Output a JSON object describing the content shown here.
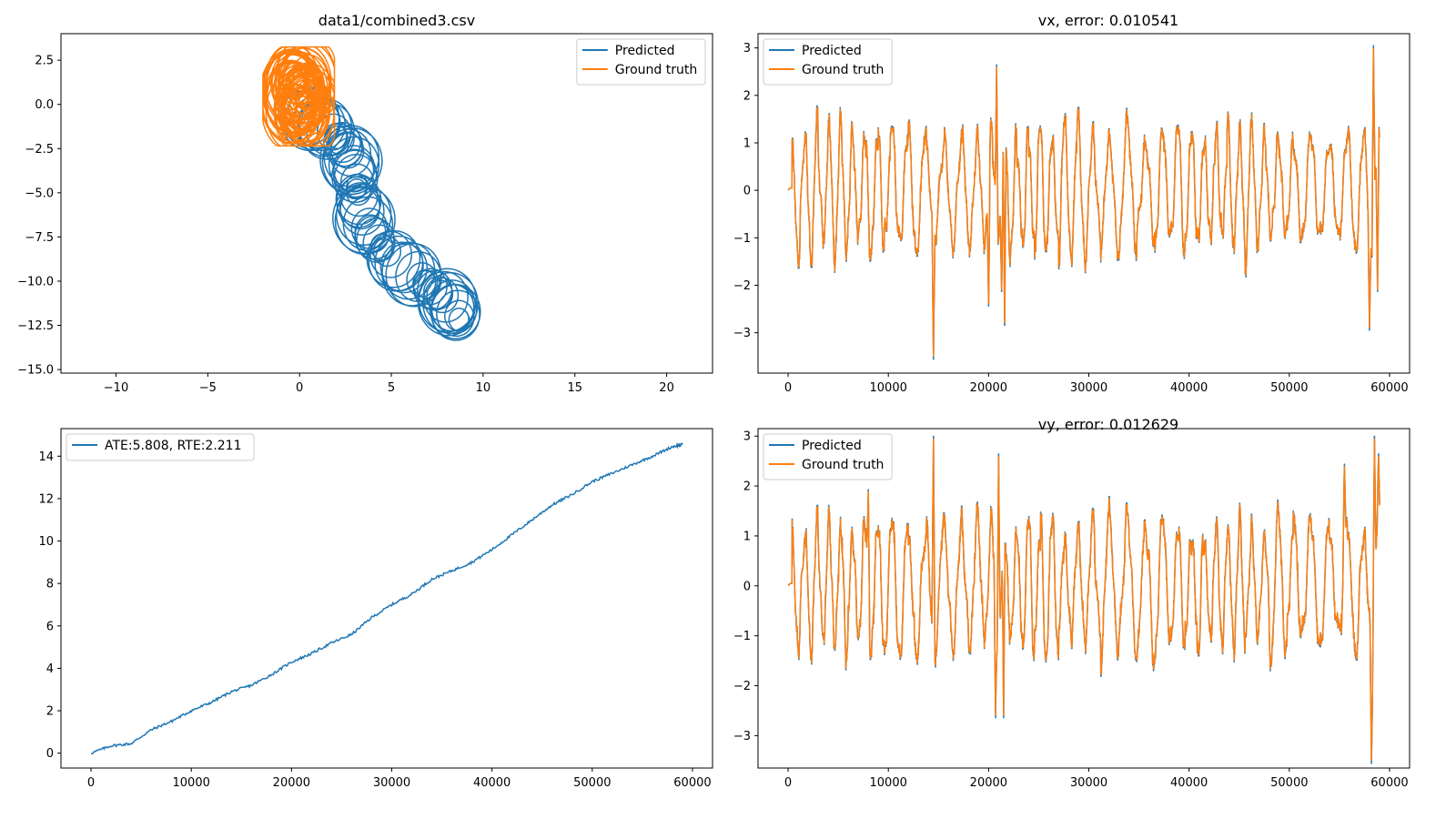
{
  "colors": {
    "predicted": "#1f77b4",
    "ground_truth": "#ff7f0e"
  },
  "chart_data": [
    {
      "type": "line",
      "title": "data1/combined3.csv",
      "xlabel": "",
      "ylabel": "",
      "xlim": [
        -13,
        22.5
      ],
      "ylim": [
        -15.2,
        4
      ],
      "xticks": [
        -10,
        -5,
        0,
        5,
        10,
        15,
        20
      ],
      "yticks": [
        2.5,
        0.0,
        -2.5,
        -5.0,
        -7.5,
        -10.0,
        -12.5,
        -15.0
      ],
      "legend_position": "top-right",
      "series": [
        {
          "name": "Predicted",
          "color": "#1f77b4",
          "shape": "drifting loops from (0,0) toward (8,-13)",
          "start": [
            0,
            0
          ],
          "end": [
            9.5,
            -14
          ]
        },
        {
          "name": "Ground truth",
          "color": "#ff7f0e",
          "shape": "loops centered near origin",
          "center": [
            0,
            0.5
          ],
          "extent_x": [
            -2,
            1.8
          ],
          "extent_y": [
            -2.3,
            3.2
          ]
        }
      ]
    },
    {
      "type": "line",
      "title": "vx, error: 0.010541",
      "xlabel": "",
      "ylabel": "",
      "xlim": [
        -3000,
        62000
      ],
      "ylim": [
        -3.85,
        3.3
      ],
      "xticks": [
        0,
        10000,
        20000,
        30000,
        40000,
        50000,
        60000
      ],
      "yticks": [
        3,
        2,
        1,
        0,
        -1,
        -2,
        -3
      ],
      "legend_position": "top-left",
      "series": [
        {
          "name": "Predicted",
          "color": "#1f77b4"
        },
        {
          "name": "Ground truth",
          "color": "#ff7f0e"
        }
      ],
      "x_range": [
        0,
        59000
      ],
      "typical_amplitude": 1.3,
      "spikes": [
        [
          14500,
          -3.5
        ],
        [
          20000,
          -2.4
        ],
        [
          20800,
          2.6
        ],
        [
          21300,
          -2.1
        ],
        [
          21600,
          -2.8
        ],
        [
          58000,
          -2.9
        ],
        [
          58400,
          3.0
        ],
        [
          58800,
          -2.1
        ]
      ]
    },
    {
      "type": "line",
      "title": "",
      "xlabel": "",
      "ylabel": "",
      "xlim": [
        -3000,
        62000
      ],
      "ylim": [
        -0.7,
        15.3
      ],
      "xticks": [
        0,
        10000,
        20000,
        30000,
        40000,
        50000,
        60000
      ],
      "yticks": [
        0,
        2,
        4,
        6,
        8,
        10,
        12,
        14
      ],
      "legend_position": "top-left",
      "series": [
        {
          "name": "ATE:5.808, RTE:2.211",
          "color": "#1f77b4",
          "x": [
            0,
            2000,
            4000,
            6000,
            8000,
            10000,
            12000,
            14000,
            16000,
            18000,
            20000,
            22000,
            24000,
            26000,
            28000,
            30000,
            32000,
            34000,
            36000,
            38000,
            40000,
            42000,
            44000,
            46000,
            48000,
            50000,
            52000,
            54000,
            56000,
            58000,
            59000
          ],
          "y": [
            0,
            0.35,
            0.45,
            1.1,
            1.5,
            2.0,
            2.4,
            2.9,
            3.2,
            3.7,
            4.3,
            4.7,
            5.2,
            5.6,
            6.4,
            7.0,
            7.5,
            8.2,
            8.6,
            9.0,
            9.6,
            10.3,
            11.0,
            11.7,
            12.2,
            12.8,
            13.2,
            13.6,
            14.0,
            14.45,
            14.55
          ]
        }
      ]
    },
    {
      "type": "line",
      "title": "vy, error: 0.012629",
      "xlabel": "",
      "ylabel": "",
      "xlim": [
        -3000,
        62000
      ],
      "ylim": [
        -3.65,
        3.15
      ],
      "xticks": [
        0,
        10000,
        20000,
        30000,
        40000,
        50000,
        60000
      ],
      "yticks": [
        3,
        2,
        1,
        0,
        -1,
        -2,
        -3
      ],
      "legend_position": "top-left",
      "series": [
        {
          "name": "Predicted",
          "color": "#1f77b4"
        },
        {
          "name": "Ground truth",
          "color": "#ff7f0e"
        }
      ],
      "x_range": [
        0,
        59000
      ],
      "typical_amplitude": 1.3,
      "spikes": [
        [
          14500,
          2.95
        ],
        [
          20700,
          -2.6
        ],
        [
          21000,
          2.6
        ],
        [
          21500,
          -2.6
        ],
        [
          8000,
          1.9
        ],
        [
          55500,
          2.4
        ],
        [
          58200,
          -3.5
        ],
        [
          58500,
          2.95
        ],
        [
          58900,
          2.6
        ]
      ]
    }
  ]
}
